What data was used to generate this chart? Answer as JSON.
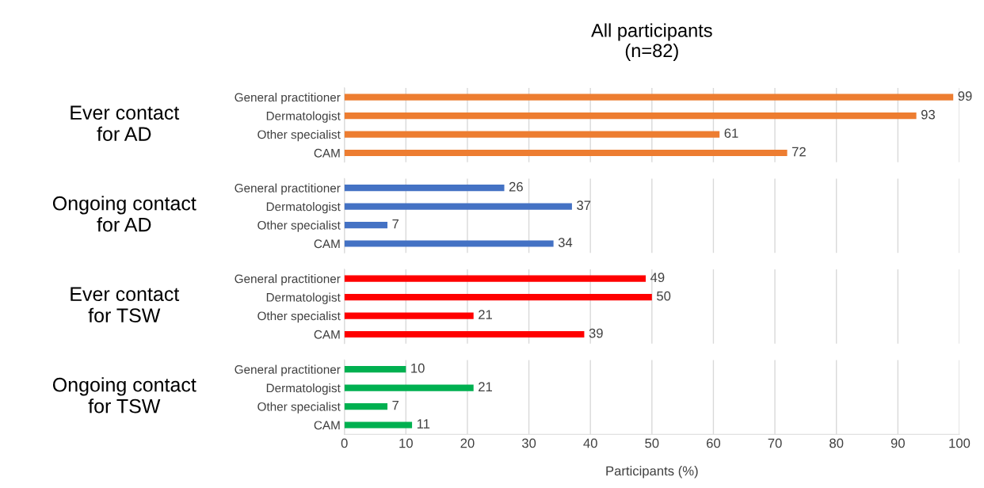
{
  "chart_data": [
    {
      "type": "bar",
      "orientation": "horizontal",
      "title": "All participants\n(n=82)",
      "ylabel": "Ever contact\nfor AD",
      "categories": [
        "General practitioner",
        "Dermatologist",
        "Other specialist",
        "CAM"
      ],
      "values": [
        99,
        93,
        61,
        72
      ],
      "color": "#ed7d31",
      "data_labels": true,
      "xlim": [
        0,
        100
      ],
      "xticks": [
        0,
        10,
        20,
        30,
        40,
        50,
        60,
        70,
        80,
        90,
        100
      ],
      "grid": "x",
      "tick_labels": "y"
    },
    {
      "type": "bar",
      "orientation": "horizontal",
      "ylabel": "Ongoing contact\nfor AD",
      "categories": [
        "General practitioner",
        "Dermatologist",
        "Other specialist",
        "CAM"
      ],
      "values": [
        26,
        37,
        7,
        34
      ],
      "color": "#4472c4",
      "data_labels": true,
      "xlim": [
        0,
        100
      ],
      "xticks": [
        0,
        10,
        20,
        30,
        40,
        50,
        60,
        70,
        80,
        90,
        100
      ],
      "grid": "x",
      "tick_labels": "y"
    },
    {
      "type": "bar",
      "orientation": "horizontal",
      "ylabel": "Ever contact\nfor TSW",
      "categories": [
        "General practitioner",
        "Dermatologist",
        "Other specialist",
        "CAM"
      ],
      "values": [
        49,
        50,
        21,
        39
      ],
      "color": "#ff0000",
      "data_labels": true,
      "xlim": [
        0,
        100
      ],
      "xticks": [
        0,
        10,
        20,
        30,
        40,
        50,
        60,
        70,
        80,
        90,
        100
      ],
      "grid": "x",
      "tick_labels": "y"
    },
    {
      "type": "bar",
      "orientation": "horizontal",
      "ylabel": "Ongoing contact\nfor TSW",
      "xlabel": "Participants (%)",
      "categories": [
        "General practitioner",
        "Dermatologist",
        "Other specialist",
        "CAM"
      ],
      "values": [
        10,
        21,
        7,
        11
      ],
      "color": "#00b050",
      "data_labels": true,
      "xlim": [
        0,
        100
      ],
      "xticks": [
        0,
        10,
        20,
        30,
        40,
        50,
        60,
        70,
        80,
        90,
        100
      ],
      "grid": "x"
    }
  ]
}
